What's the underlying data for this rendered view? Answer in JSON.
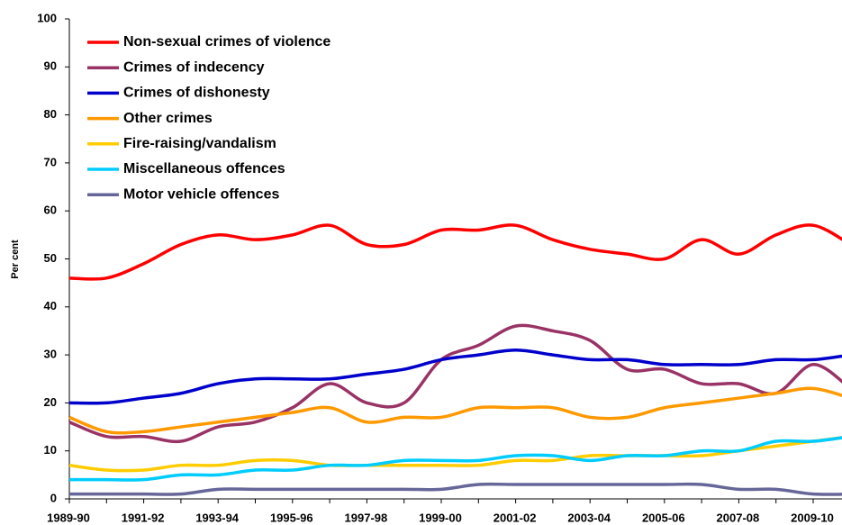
{
  "chart_data": {
    "type": "line",
    "y_label": "Per cent",
    "categories": [
      "1989-90",
      null,
      "1991-92",
      null,
      "1993-94",
      null,
      "1995-96",
      null,
      "1997-98",
      null,
      "1999-00",
      null,
      "2001-02",
      null,
      "2003-04",
      null,
      "2005-06",
      null,
      "2007-08",
      null,
      "2009-10",
      null
    ],
    "ylim": [
      0,
      100
    ],
    "yticks": [
      0,
      10,
      20,
      30,
      40,
      50,
      60,
      70,
      80,
      90,
      100
    ],
    "series": [
      {
        "name": "Non-sexual crimes of violence",
        "color": "#ff0000",
        "values": [
          46,
          46,
          49,
          53,
          55,
          54,
          55,
          57,
          53,
          53,
          56,
          56,
          57,
          54,
          52,
          51,
          50,
          54,
          51,
          55,
          57,
          53
        ]
      },
      {
        "name": "Crimes of indecency",
        "color": "#993366",
        "values": [
          16,
          13,
          13,
          12,
          15,
          16,
          19,
          24,
          20,
          20,
          29,
          32,
          36,
          35,
          33,
          27,
          27,
          24,
          24,
          22,
          28,
          23
        ]
      },
      {
        "name": "Crimes of dishonesty",
        "color": "#0000cc",
        "values": [
          20,
          20,
          21,
          22,
          24,
          25,
          25,
          25,
          26,
          27,
          29,
          30,
          31,
          30,
          29,
          29,
          28,
          28,
          28,
          29,
          29,
          30
        ]
      },
      {
        "name": "Other crimes",
        "color": "#ff9900",
        "values": [
          17,
          14,
          14,
          15,
          16,
          17,
          18,
          19,
          16,
          17,
          17,
          19,
          19,
          19,
          17,
          17,
          19,
          20,
          21,
          22,
          23,
          21
        ]
      },
      {
        "name": "Fire-raising/vandalism",
        "color": "#ffcc00",
        "values": [
          7,
          6,
          6,
          7,
          7,
          8,
          8,
          7,
          7,
          7,
          7,
          7,
          8,
          8,
          9,
          9,
          9,
          9,
          10,
          11,
          12,
          13
        ]
      },
      {
        "name": "Miscellaneous offences",
        "color": "#00ccff",
        "values": [
          4,
          4,
          4,
          5,
          5,
          6,
          6,
          7,
          7,
          8,
          8,
          8,
          9,
          9,
          8,
          9,
          9,
          10,
          10,
          12,
          12,
          13
        ]
      },
      {
        "name": "Motor vehicle offences",
        "color": "#666699",
        "values": [
          1,
          1,
          1,
          1,
          2,
          2,
          2,
          2,
          2,
          2,
          2,
          3,
          3,
          3,
          3,
          3,
          3,
          3,
          2,
          2,
          1,
          1
        ]
      }
    ]
  }
}
